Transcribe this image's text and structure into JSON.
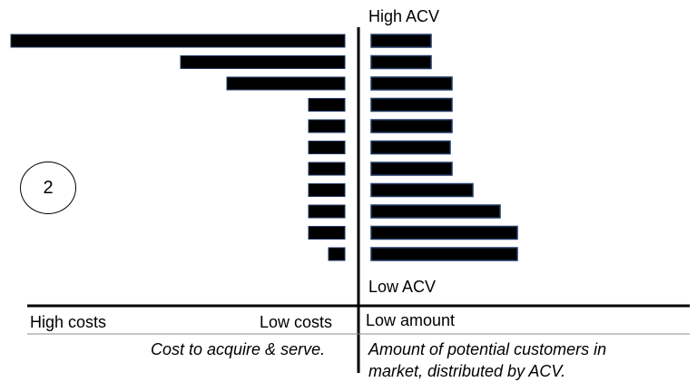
{
  "axis": {
    "top_label": "High ACV",
    "bottom_label": "Low ACV",
    "left_label": "High costs",
    "mid_label": "Low costs",
    "right_label": "Low amount"
  },
  "captions": {
    "left": "Cost to acquire & serve.",
    "right_line1": "Amount of potential customers in",
    "right_line2": "market, distributed by ACV."
  },
  "badge": "2",
  "colors": {
    "bar_fill": "#000000",
    "bar_stroke": "#1f3864",
    "axis": "#000000"
  },
  "chart_data": {
    "type": "bar",
    "orientation": "horizontal-butterfly",
    "categories_order": "top = High ACV, bottom = Low ACV",
    "series": [
      {
        "values": [
          368,
          181,
          130,
          40,
          40,
          40,
          40,
          40,
          40,
          40,
          18
        ]
      },
      {
        "values": [
          66,
          66,
          89,
          89,
          89,
          87,
          89,
          112,
          142,
          161,
          161
        ]
      }
    ]
  }
}
